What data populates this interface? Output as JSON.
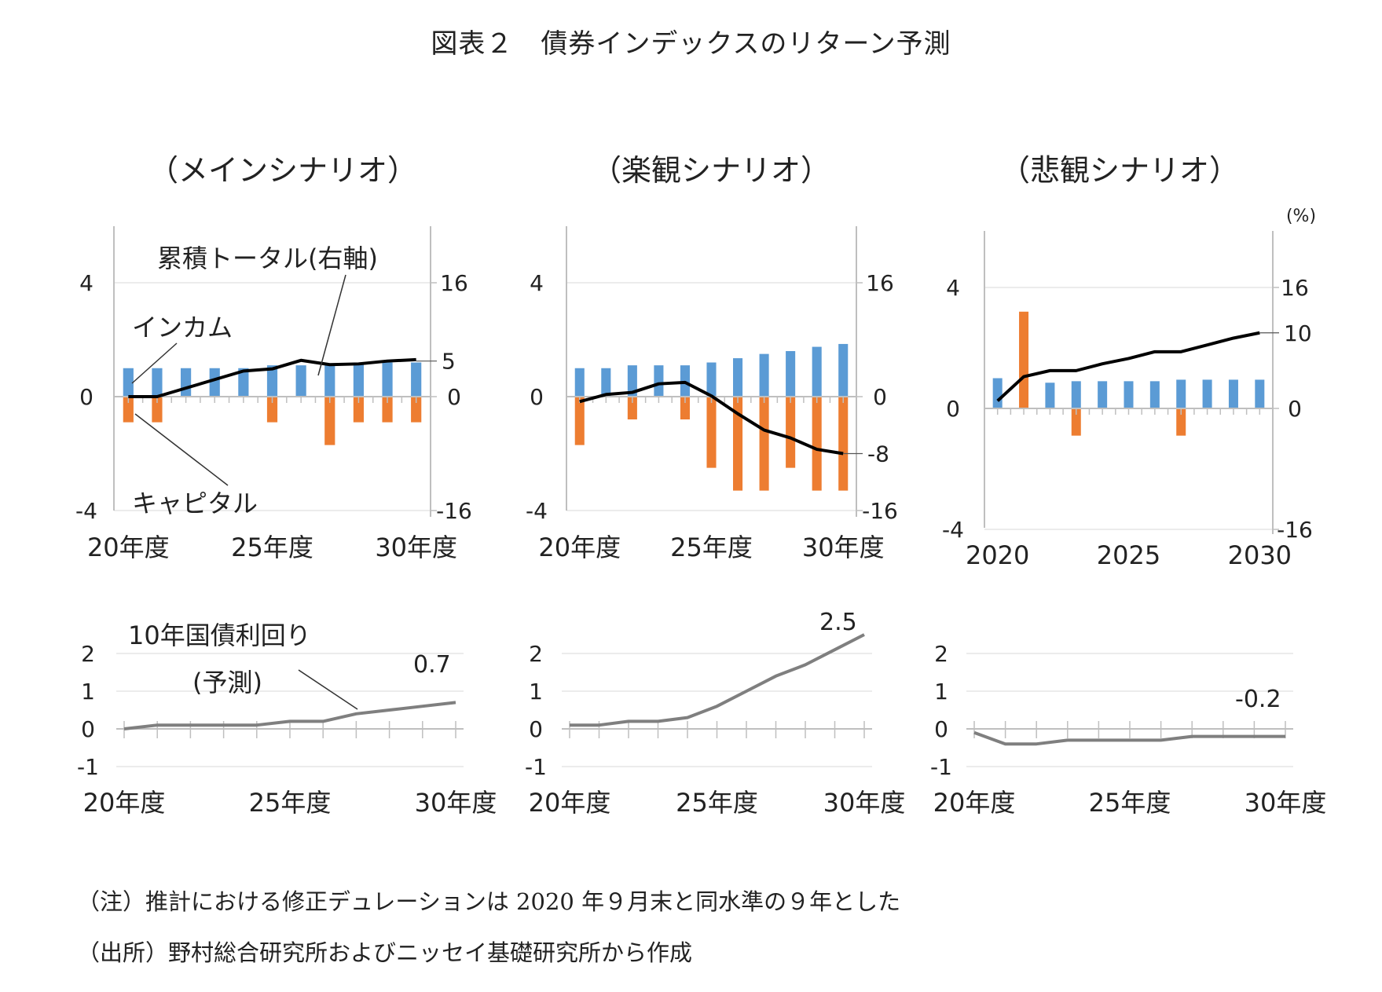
{
  "title": "図表２　債券インデックスのリターン予測",
  "notes": [
    "（注）推計における修正デュレーションは 2020 年９月末と同水準の９年とした",
    "（出所）野村総合研究所およびニッセイ基礎研究所から作成"
  ],
  "colors": {
    "income": "#5b9bd5",
    "capital": "#ed7d31",
    "total": "#000000",
    "yield": "#7f7f7f",
    "grid": "#d9d9d9",
    "axis": "#bfbfbf"
  },
  "chart_data": [
    {
      "type": "bar",
      "panel": "top",
      "title": "（メインシナリオ）",
      "x": [
        "20",
        "21",
        "22",
        "23",
        "24",
        "25",
        "26",
        "27",
        "28",
        "29",
        "30"
      ],
      "x_tick_labels": [
        "20年度",
        "25年度",
        "30年度"
      ],
      "y_left_ticks": [
        "4",
        "0",
        "-4"
      ],
      "y_right_ticks": [
        "16",
        "0",
        "-16"
      ],
      "ylim_left": [
        -4,
        4
      ],
      "ylim_right": [
        -16,
        16
      ],
      "series": [
        {
          "name": "インカム",
          "axis": "left",
          "values": [
            1.0,
            1.0,
            1.0,
            1.0,
            1.0,
            1.1,
            1.1,
            1.1,
            1.15,
            1.2,
            1.2
          ]
        },
        {
          "name": "キャピタル",
          "axis": "left",
          "values": [
            -0.9,
            -0.9,
            0,
            0,
            0,
            -0.9,
            0,
            -1.7,
            -0.9,
            -0.9,
            -0.9
          ]
        },
        {
          "name": "累積トータル(右軸)",
          "axis": "right",
          "type": "line",
          "values": [
            0,
            0,
            1.2,
            2.4,
            3.6,
            3.9,
            5.1,
            4.5,
            4.6,
            5.0,
            5.2
          ]
        }
      ],
      "annotations": [
        "累積トータル(右軸)",
        "インカム",
        "キャピタル",
        "5"
      ],
      "right_tick_highlight": "5"
    },
    {
      "type": "bar",
      "panel": "top",
      "title": "（楽観シナリオ）",
      "x": [
        "20",
        "21",
        "22",
        "23",
        "24",
        "25",
        "26",
        "27",
        "28",
        "29",
        "30"
      ],
      "x_tick_labels": [
        "20年度",
        "25年度",
        "30年度"
      ],
      "y_left_ticks": [
        "4",
        "0",
        "-4"
      ],
      "y_right_ticks": [
        "16",
        "0",
        "-16"
      ],
      "ylim_left": [
        -4,
        4
      ],
      "ylim_right": [
        -16,
        16
      ],
      "series": [
        {
          "name": "インカム",
          "axis": "left",
          "values": [
            1.0,
            1.0,
            1.1,
            1.1,
            1.1,
            1.2,
            1.35,
            1.5,
            1.6,
            1.75,
            1.85
          ]
        },
        {
          "name": "キャピタル",
          "axis": "left",
          "values": [
            -1.7,
            0,
            -0.8,
            0,
            -0.8,
            -2.5,
            -3.3,
            -3.3,
            -2.5,
            -3.3,
            -3.3
          ]
        },
        {
          "name": "累積トータル",
          "axis": "right",
          "type": "line",
          "values": [
            -0.7,
            0.3,
            0.6,
            1.8,
            2.0,
            0.1,
            -2.4,
            -4.7,
            -5.8,
            -7.4,
            -8.0
          ]
        }
      ],
      "right_tick_highlight": "-8"
    },
    {
      "type": "bar",
      "panel": "top",
      "title": "（悲観シナリオ）",
      "unit": "(%)",
      "x": [
        "2020",
        "2021",
        "2022",
        "2023",
        "2024",
        "2025",
        "2026",
        "2027",
        "2028",
        "2029",
        "2030"
      ],
      "x_tick_labels": [
        "2020",
        "2025",
        "2030"
      ],
      "y_left_ticks": [
        "4",
        "0",
        "-4"
      ],
      "y_right_ticks": [
        "16",
        "0",
        "-16"
      ],
      "ylim_left": [
        -4,
        4
      ],
      "ylim_right": [
        -16,
        16
      ],
      "series": [
        {
          "name": "インカム",
          "axis": "left",
          "values": [
            1.0,
            0,
            0.85,
            0.9,
            0.9,
            0.9,
            0.9,
            0.95,
            0.95,
            0.95,
            0.95
          ]
        },
        {
          "name": "キャピタル",
          "axis": "left",
          "values": [
            0,
            3.2,
            0,
            -0.9,
            0,
            0,
            0,
            -0.9,
            0,
            0,
            0
          ]
        },
        {
          "name": "累積トータル",
          "axis": "right",
          "type": "line",
          "values": [
            1.0,
            4.2,
            5.0,
            5.0,
            5.9,
            6.6,
            7.5,
            7.5,
            8.4,
            9.3,
            10.0
          ]
        }
      ],
      "right_tick_highlight": "10"
    },
    {
      "type": "line",
      "panel": "bottom",
      "title": "10年国債利回り(予測)",
      "x": [
        "20",
        "21",
        "22",
        "23",
        "24",
        "25",
        "26",
        "27",
        "28",
        "29",
        "30"
      ],
      "x_tick_labels": [
        "20年度",
        "25年度",
        "30年度"
      ],
      "y_ticks": [
        "2",
        "1",
        "0",
        "-1"
      ],
      "ylim": [
        -1,
        2
      ],
      "series": [
        {
          "name": "10年国債利回り",
          "values": [
            0.0,
            0.1,
            0.1,
            0.1,
            0.1,
            0.2,
            0.2,
            0.4,
            0.5,
            0.6,
            0.7
          ]
        }
      ],
      "annotations": [
        "10年国債利回り",
        "(予測)",
        "0.7"
      ]
    },
    {
      "type": "line",
      "panel": "bottom",
      "title": "",
      "x": [
        "20",
        "21",
        "22",
        "23",
        "24",
        "25",
        "26",
        "27",
        "28",
        "29",
        "30"
      ],
      "x_tick_labels": [
        "20年度",
        "25年度",
        "30年度"
      ],
      "y_ticks": [
        "2",
        "1",
        "0",
        "-1"
      ],
      "ylim": [
        -1,
        2
      ],
      "series": [
        {
          "name": "10年国債利回り",
          "values": [
            0.1,
            0.1,
            0.2,
            0.2,
            0.3,
            0.6,
            1.0,
            1.4,
            1.7,
            2.1,
            2.5
          ]
        }
      ],
      "annotations": [
        "2.5"
      ]
    },
    {
      "type": "line",
      "panel": "bottom",
      "title": "",
      "x": [
        "20",
        "21",
        "22",
        "23",
        "24",
        "25",
        "26",
        "27",
        "28",
        "29",
        "30"
      ],
      "x_tick_labels": [
        "20年度",
        "25年度",
        "30年度"
      ],
      "y_ticks": [
        "2",
        "1",
        "0",
        "-1"
      ],
      "ylim": [
        -1,
        2
      ],
      "series": [
        {
          "name": "10年国債利回り",
          "values": [
            -0.1,
            -0.4,
            -0.4,
            -0.3,
            -0.3,
            -0.3,
            -0.3,
            -0.2,
            -0.2,
            -0.2,
            -0.2
          ]
        }
      ],
      "annotations": [
        "-0.2"
      ]
    }
  ]
}
